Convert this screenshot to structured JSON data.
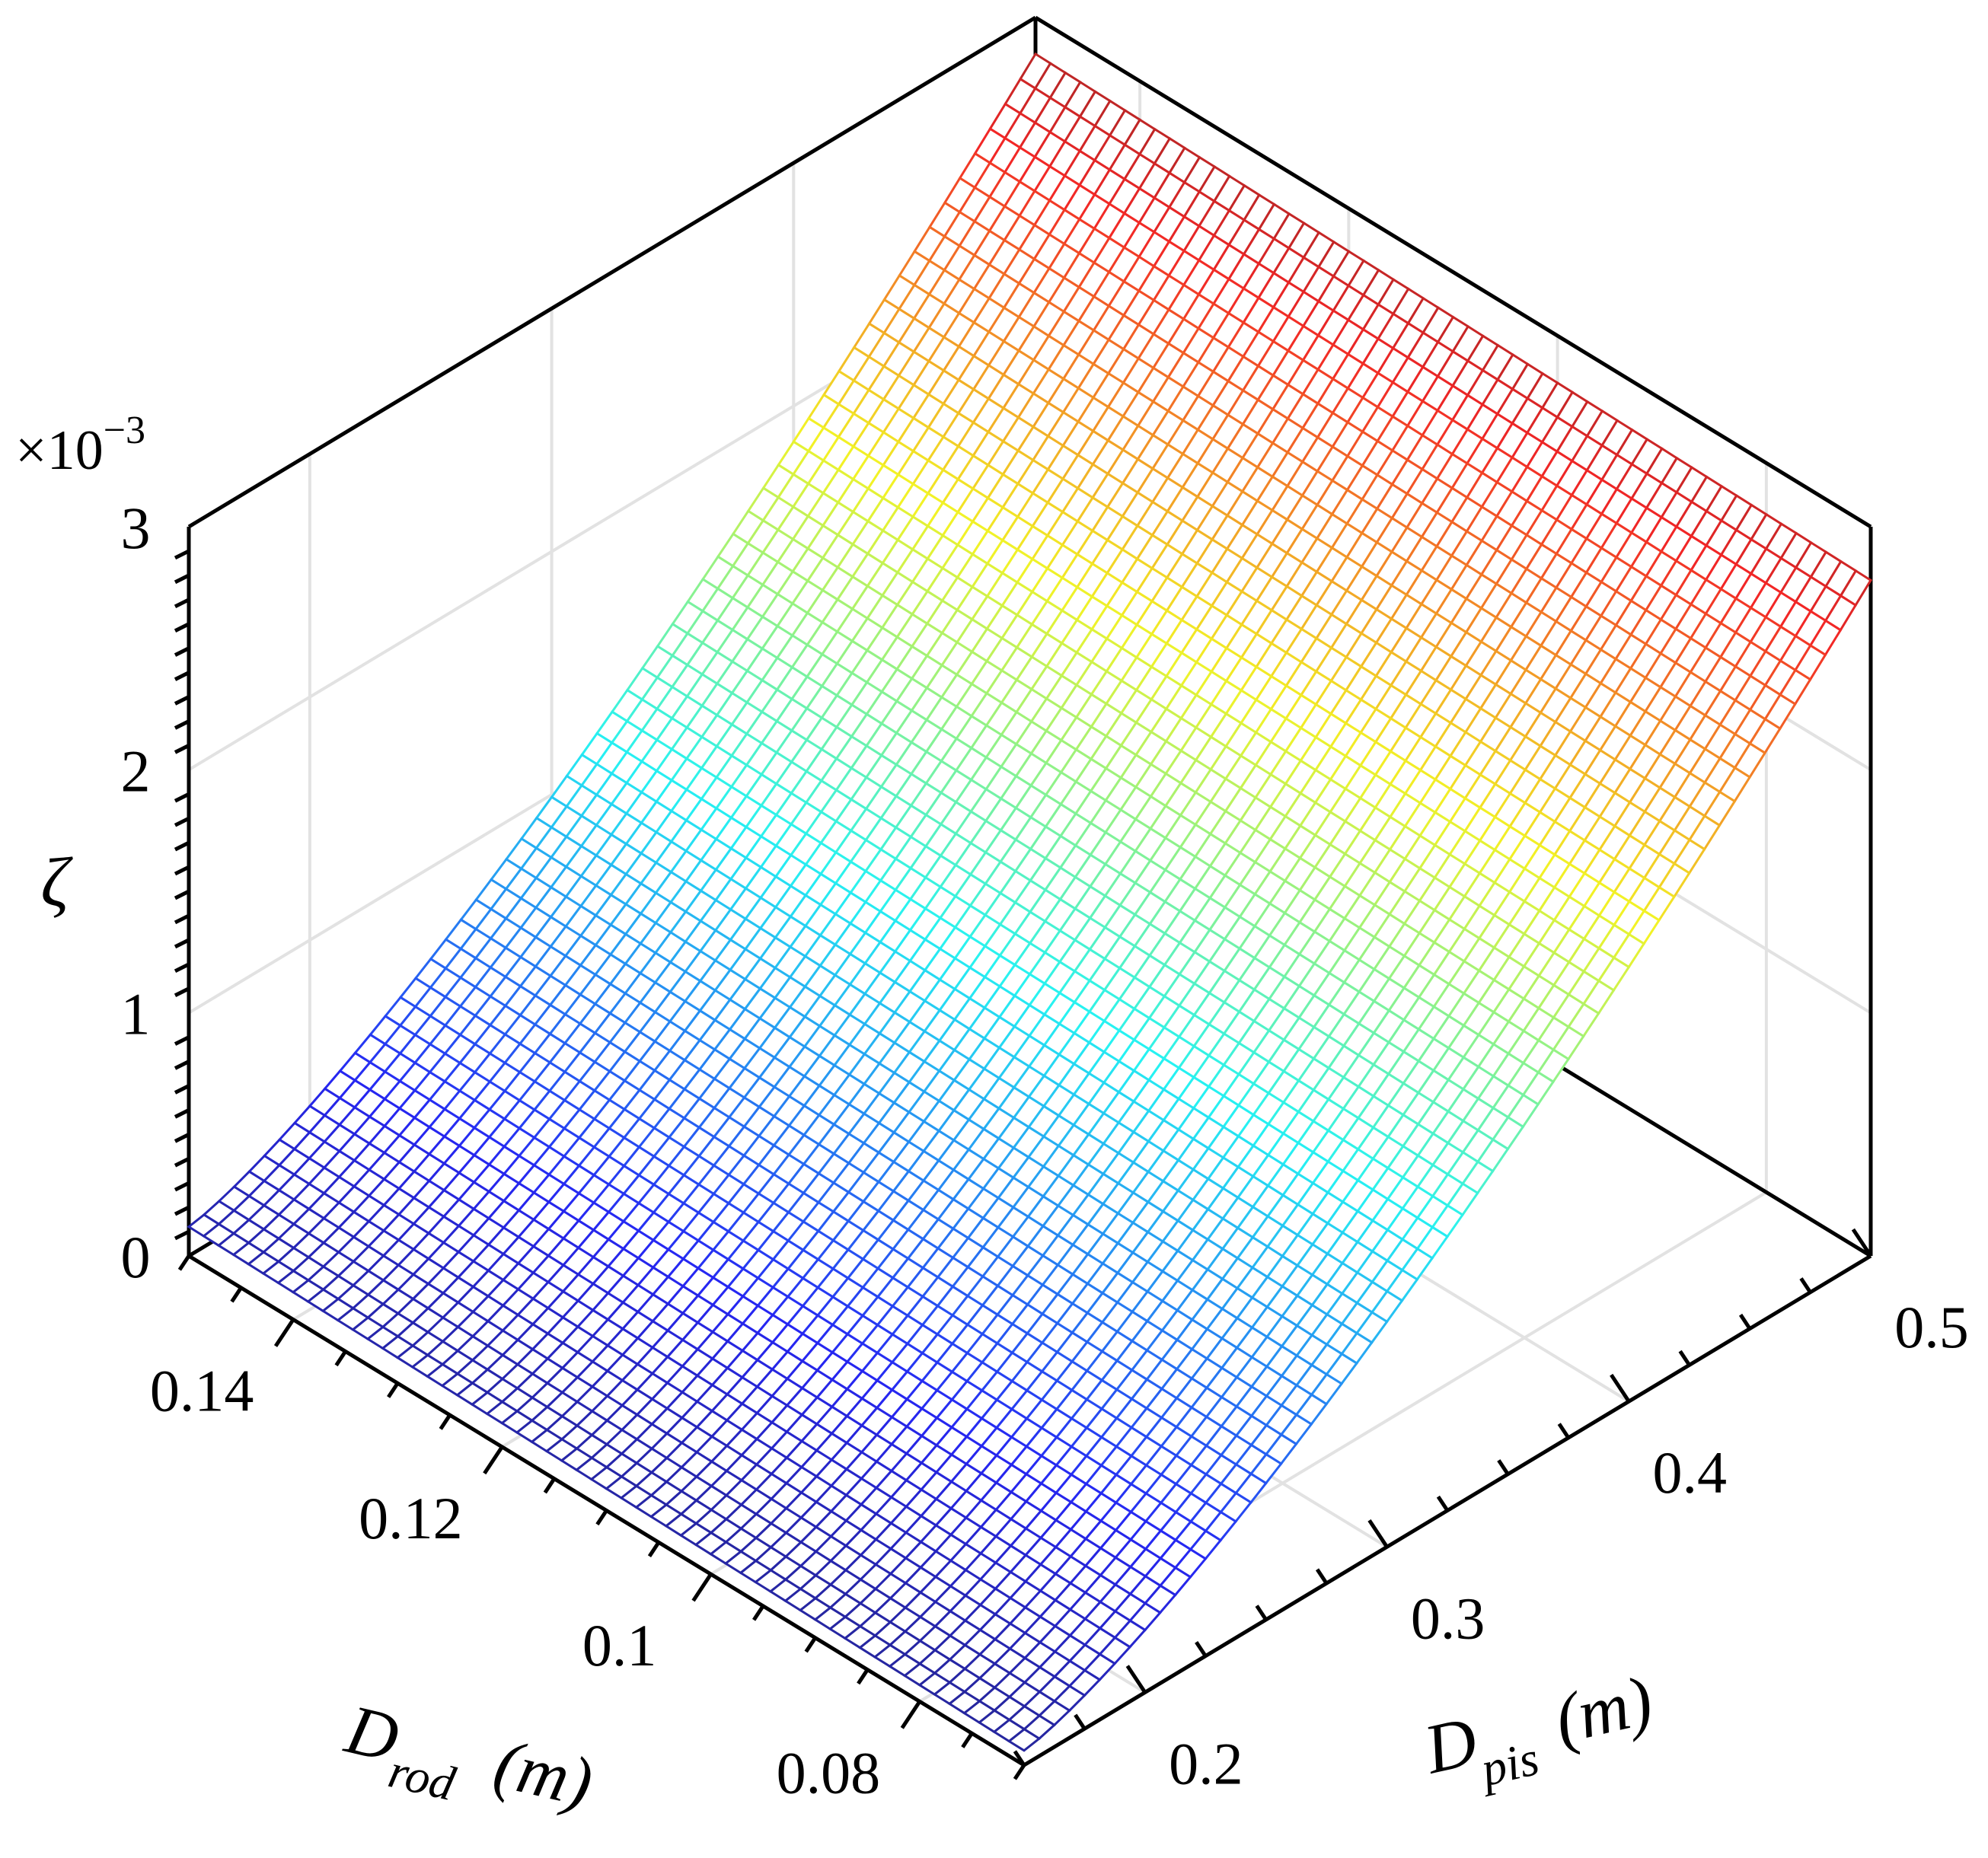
{
  "chart_data": {
    "type": "surface",
    "xlabel": {
      "symbol": "D",
      "subscript": "rod",
      "unit": "(m)"
    },
    "ylabel": {
      "symbol": "D",
      "subscript": "pis",
      "unit": "(m)"
    },
    "zlabel": "ζ",
    "z_multiplier": {
      "prefix": "×10",
      "exponent": "−3"
    },
    "xlim": [
      0.07,
      0.15
    ],
    "ylim": [
      0.15,
      0.5
    ],
    "zlim": [
      0,
      0.003
    ],
    "x_ticks": [
      0.08,
      0.1,
      0.12,
      0.14
    ],
    "x_tick_labels": [
      "0.08",
      "0.1",
      "0.12",
      "0.14"
    ],
    "y_ticks": [
      0.2,
      0.3,
      0.4,
      0.5
    ],
    "y_tick_labels": [
      "0.2",
      "0.3",
      "0.4",
      "0.5"
    ],
    "z_ticks": [
      0,
      0.001,
      0.002,
      0.003
    ],
    "z_tick_labels": [
      "0",
      "1",
      "2",
      "3"
    ],
    "surface": {
      "x_range": [
        0.07,
        0.15
      ],
      "y_range": [
        0.15,
        0.5
      ],
      "z_corners": {
        "x0.07_y0.15": 6e-05,
        "x0.15_y0.15": 0.00012,
        "x0.07_y0.50": 0.00278,
        "x0.15_y0.50": 0.00285
      },
      "y_exponent": 2,
      "colormap": "jet",
      "grid_rows": 56,
      "grid_cols": 56
    },
    "grid": true,
    "view": "isometric, looking from the corner of high D_rod and low D_pis"
  }
}
